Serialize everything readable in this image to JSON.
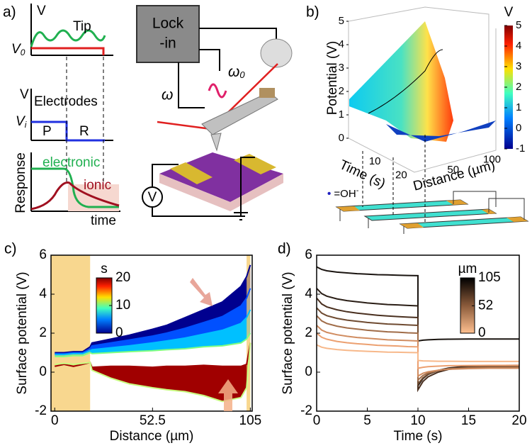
{
  "panel_a": {
    "label": "a)",
    "tip_v": "V",
    "tip_v0": "V",
    "tip_v0_sub": "0",
    "tip": "Tip",
    "lock_in": [
      "Lock",
      "-in"
    ],
    "omega": "ω",
    "omega0": "ω",
    "omega0_sub": "0",
    "electrodes_v": "V",
    "electrodes": "Electrodes",
    "vi": "V",
    "vi_sub": "i",
    "p": "P",
    "r": "R",
    "response": "Response",
    "electronic": "electronic",
    "ionic": "ionic",
    "time": "time",
    "voltmeter": "V"
  },
  "panel_b": {
    "label": "b)",
    "colorbar_label": "V",
    "colorbar_ticks": [
      5,
      4,
      3,
      2,
      1,
      0,
      -1
    ],
    "colorbar_lim": [
      -1,
      5
    ],
    "z_label": "Potential (V)",
    "z_ticks": [
      0,
      1,
      2,
      3,
      4,
      5
    ],
    "z_lim": [
      0,
      5
    ],
    "time_label": "Time (s)",
    "time_ticks": [
      10,
      20
    ],
    "time_lim": [
      0,
      25
    ],
    "distance_label": "Distance (µm)",
    "distance_ticks": [
      50,
      100
    ],
    "distance_lim": [
      0,
      105
    ],
    "legend": "=OH",
    "legend_sup": "-"
  },
  "chart_data": [
    {
      "type": "line",
      "label": "c)",
      "x_label": "Distance (µm)",
      "y_label": "Surface potential (V)",
      "x": [
        0,
        5,
        10,
        15,
        19,
        20,
        30,
        40,
        52.5,
        60,
        70,
        80,
        90,
        100,
        103,
        105
      ],
      "series": [
        {
          "color": "#00008f",
          "fill": true,
          "values": [
            1.0,
            1.0,
            1.05,
            1.05,
            1.3,
            1.5,
            1.7,
            1.9,
            2.2,
            2.4,
            2.8,
            3.2,
            3.6,
            4.4,
            4.9,
            5.5
          ]
        },
        {
          "color": "#0050ff",
          "fill": true,
          "values": [
            0.95,
            0.95,
            1.0,
            1.0,
            1.2,
            1.35,
            1.5,
            1.65,
            1.85,
            2.0,
            2.25,
            2.55,
            2.85,
            3.4,
            3.8,
            4.3
          ]
        },
        {
          "color": "#00c0ff",
          "fill": true,
          "values": [
            0.9,
            0.9,
            0.95,
            0.95,
            1.1,
            1.15,
            1.25,
            1.35,
            1.5,
            1.6,
            1.75,
            1.95,
            2.15,
            2.5,
            2.8,
            3.2
          ]
        },
        {
          "color": "#80ff80",
          "fill": false,
          "values": [
            0.8,
            0.8,
            0.85,
            0.85,
            1.0,
            0.95,
            1.0,
            1.05,
            1.1,
            1.15,
            1.2,
            1.3,
            1.35,
            1.5,
            1.7,
            2.0
          ]
        },
        {
          "color": "#a00000",
          "fill": true,
          "values": [
            0.3,
            0.4,
            0.3,
            0.4,
            0.5,
            0.25,
            0.3,
            0.3,
            0.25,
            0.3,
            0.3,
            0.35,
            0.3,
            0.3,
            0.4,
            1.5
          ]
        },
        {
          "color": "#c8ff80",
          "fill": false,
          "values": [
            0.4,
            0.45,
            0.4,
            0.45,
            0.5,
            0.1,
            -0.3,
            -0.6,
            -0.8,
            -0.9,
            -1.0,
            -1.2,
            -1.5,
            -1.3,
            -0.8,
            1.5
          ]
        }
      ],
      "xlim": [
        -2,
        106
      ],
      "xticks": [
        0,
        52.5,
        105
      ],
      "ylim": [
        -2,
        6
      ],
      "yticks": [
        -2,
        0,
        2,
        4,
        6
      ],
      "shaded_x": [
        [
          -2,
          19
        ],
        [
          103,
          105
        ]
      ],
      "shade_color": "#f5c96a",
      "colorbar_label": "s",
      "colorbar_ticks": [
        20,
        10,
        0
      ],
      "colorbar_lim": [
        0,
        20
      ],
      "colormap": "jet"
    },
    {
      "type": "line",
      "label": "d)",
      "x_label": "Time (s)",
      "y_label": "Surface potential (V)",
      "x": [
        0,
        0.5,
        1,
        2,
        3,
        4,
        5,
        6,
        7,
        8,
        9,
        10,
        10,
        10.5,
        11,
        12,
        13,
        15,
        17,
        20
      ],
      "series": [
        {
          "color": "#1a1410",
          "values": [
            5.4,
            5.27,
            5.2,
            5.13,
            5.09,
            5.05,
            5.03,
            5.0,
            4.99,
            4.97,
            4.96,
            4.95,
            1.6,
            1.64,
            1.66,
            1.68,
            1.69,
            1.7,
            1.7,
            1.7
          ]
        },
        {
          "color": "#2a1e16",
          "values": [
            4.3,
            4.03,
            3.9,
            3.76,
            3.67,
            3.61,
            3.55,
            3.51,
            3.47,
            3.45,
            3.42,
            3.4,
            -0.7,
            -0.33,
            -0.12,
            0.09,
            0.21,
            0.31,
            0.34,
            0.35
          ]
        },
        {
          "color": "#4a3020",
          "values": [
            3.8,
            3.5,
            3.35,
            3.2,
            3.1,
            3.03,
            2.97,
            2.92,
            2.88,
            2.85,
            2.82,
            2.8,
            -0.9,
            -0.48,
            -0.24,
            0,
            0.14,
            0.25,
            0.29,
            0.3
          ]
        },
        {
          "color": "#6e4a30",
          "values": [
            3.3,
            3.03,
            2.9,
            2.76,
            2.67,
            2.61,
            2.55,
            2.51,
            2.47,
            2.45,
            2.42,
            2.4,
            -0.6,
            -0.29,
            -0.11,
            0.08,
            0.18,
            0.26,
            0.29,
            0.3
          ]
        },
        {
          "color": "#a06c48",
          "values": [
            2.9,
            2.63,
            2.5,
            2.36,
            2.27,
            2.21,
            2.15,
            2.11,
            2.07,
            2.05,
            2.02,
            2.0,
            -0.4,
            -0.17,
            -0.04,
            0.09,
            0.17,
            0.22,
            0.24,
            0.25
          ]
        },
        {
          "color": "#d08c60",
          "values": [
            2.4,
            2.16,
            2.04,
            1.92,
            1.84,
            1.78,
            1.74,
            1.7,
            1.66,
            1.64,
            1.62,
            1.6,
            -0.2,
            -0.06,
            0.02,
            0.1,
            0.15,
            0.18,
            0.2,
            0.2
          ]
        },
        {
          "color": "#eca070",
          "values": [
            2.0,
            1.79,
            1.69,
            1.58,
            1.51,
            1.46,
            1.42,
            1.38,
            1.36,
            1.34,
            1.31,
            1.3,
            0.2,
            0.25,
            0.28,
            0.31,
            0.33,
            0.34,
            0.35,
            0.35
          ]
        },
        {
          "color": "#f7b88a",
          "values": [
            1.4,
            1.28,
            1.22,
            1.16,
            1.12,
            1.09,
            1.07,
            1.05,
            1.03,
            1.02,
            1.01,
            1.0,
            0.6,
            0.58,
            0.57,
            0.56,
            0.56,
            0.55,
            0.55,
            0.55
          ]
        }
      ],
      "xlim": [
        0,
        20
      ],
      "xticks": [
        0,
        5,
        10,
        15,
        20
      ],
      "ylim": [
        -2,
        6
      ],
      "yticks": [
        -2,
        0,
        2,
        4,
        6
      ],
      "colorbar_label": "µm",
      "colorbar_ticks": [
        105,
        52,
        0
      ],
      "colorbar_lim": [
        0,
        105
      ],
      "colormap": "copper"
    }
  ]
}
